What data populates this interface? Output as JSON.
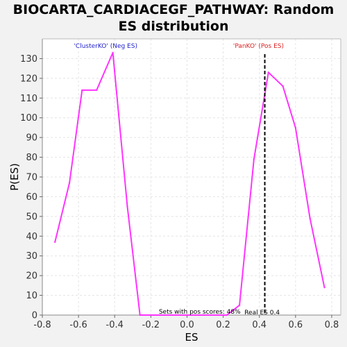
{
  "chart_data": {
    "type": "line",
    "title_line1": "BIOCARTA_CARDIACEGF_PATHWAY: Random",
    "title_line2": "ES distribution",
    "xlabel": "ES",
    "ylabel": "P(ES)",
    "xlim": [
      -0.8,
      0.85
    ],
    "ylim": [
      0,
      140
    ],
    "xticks": [
      -0.8,
      -0.6,
      -0.4,
      -0.2,
      0.0,
      0.2,
      0.4,
      0.6,
      0.8
    ],
    "xtick_labels": [
      "-0.8",
      "-0.6",
      "-0.4",
      "-0.2",
      "0.0",
      "0.2",
      "0.4",
      "0.6",
      "0.8"
    ],
    "yticks": [
      0,
      10,
      20,
      30,
      40,
      50,
      60,
      70,
      80,
      90,
      100,
      110,
      120,
      130
    ],
    "ytick_labels": [
      "0",
      "10",
      "20",
      "30",
      "40",
      "50",
      "60",
      "70",
      "80",
      "90",
      "100",
      "110",
      "120",
      "130"
    ],
    "grid": true,
    "series_color": "#ff33ff",
    "series": [
      {
        "x": [
          -0.73,
          -0.65,
          -0.58,
          -0.5,
          -0.41,
          -0.33,
          -0.26,
          0.22,
          0.29,
          0.37,
          0.45,
          0.53,
          0.6,
          0.68,
          0.76
        ],
        "y": [
          37,
          67,
          114,
          114,
          133,
          55,
          0,
          0,
          5,
          79,
          123,
          116,
          95,
          49,
          14
        ]
      }
    ],
    "real_es": 0.43,
    "real_es_label": "Real ES 0.4",
    "neg_label": "'ClusterKO' (Neg ES)",
    "pos_label": "'PanKO' (Pos ES)",
    "neg_label_color": "#2222cc",
    "pos_label_color": "#dd2222",
    "pos_scores_label": "Sets with pos scores: 48%"
  }
}
